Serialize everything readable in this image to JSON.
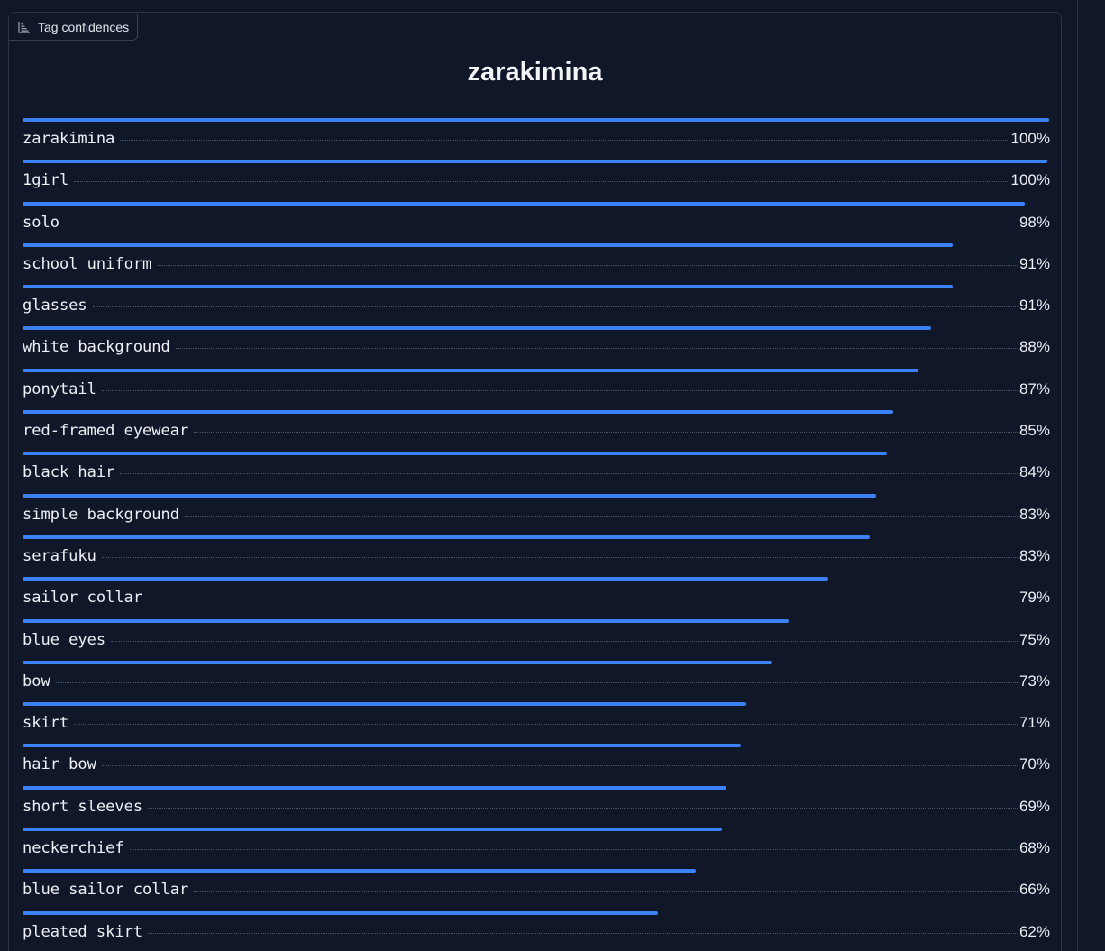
{
  "panel": {
    "label": "Tag confidences",
    "label_icon": "chart-icon",
    "heading": "zarakimina"
  },
  "colors": {
    "background": "#0f1729",
    "bar": "#3b82f6",
    "text": "#eef0f4"
  },
  "chart_data": {
    "type": "bar",
    "categories": [
      "zarakimina",
      "1girl",
      "solo",
      "school uniform",
      "glasses",
      "white background",
      "ponytail",
      "red-framed eyewear",
      "black hair",
      "simple background",
      "serafuku",
      "sailor collar",
      "blue eyes",
      "bow",
      "skirt",
      "hair bow",
      "short sleeves",
      "neckerchief",
      "blue sailor collar",
      "pleated skirt"
    ],
    "values": [
      1.0,
      0.998,
      0.976,
      0.906,
      0.906,
      0.885,
      0.873,
      0.848,
      0.842,
      0.831,
      0.825,
      0.785,
      0.746,
      0.73,
      0.705,
      0.7,
      0.686,
      0.681,
      0.656,
      0.619
    ],
    "labels": [
      "100%",
      "100%",
      "98%",
      "91%",
      "91%",
      "88%",
      "87%",
      "85%",
      "84%",
      "83%",
      "83%",
      "79%",
      "75%",
      "73%",
      "71%",
      "70%",
      "69%",
      "68%",
      "66%",
      "62%"
    ],
    "xlim": [
      0,
      1
    ]
  }
}
